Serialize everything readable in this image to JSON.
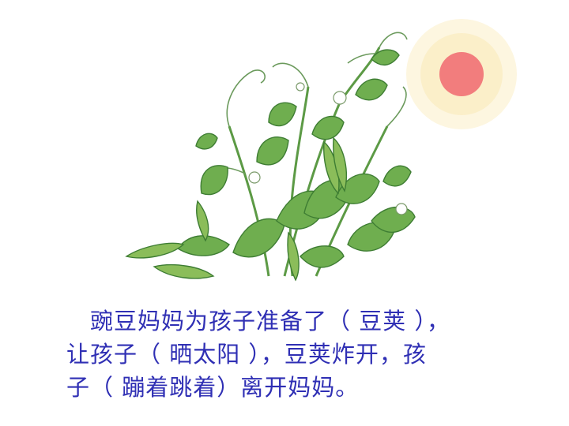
{
  "slide": {
    "lines": [
      {
        "id": "line1",
        "text": "豌豆妈妈为孩子准备了（   豆荚  ），"
      },
      {
        "id": "line2",
        "text": "让孩子（    晒太阳   ），豆荚炸开，孩"
      },
      {
        "id": "line3",
        "text": "子（   蹦着跳着）离开妈妈。"
      }
    ]
  },
  "colors": {
    "text": "#2f2fb4",
    "leaf": "#6fae4f",
    "leaf_dark": "#3e7d33",
    "sun_core": "#f27d7d",
    "sun_glow": "#fbefc9"
  },
  "icons": [
    "pea-plant-illustration",
    "sun-icon"
  ]
}
